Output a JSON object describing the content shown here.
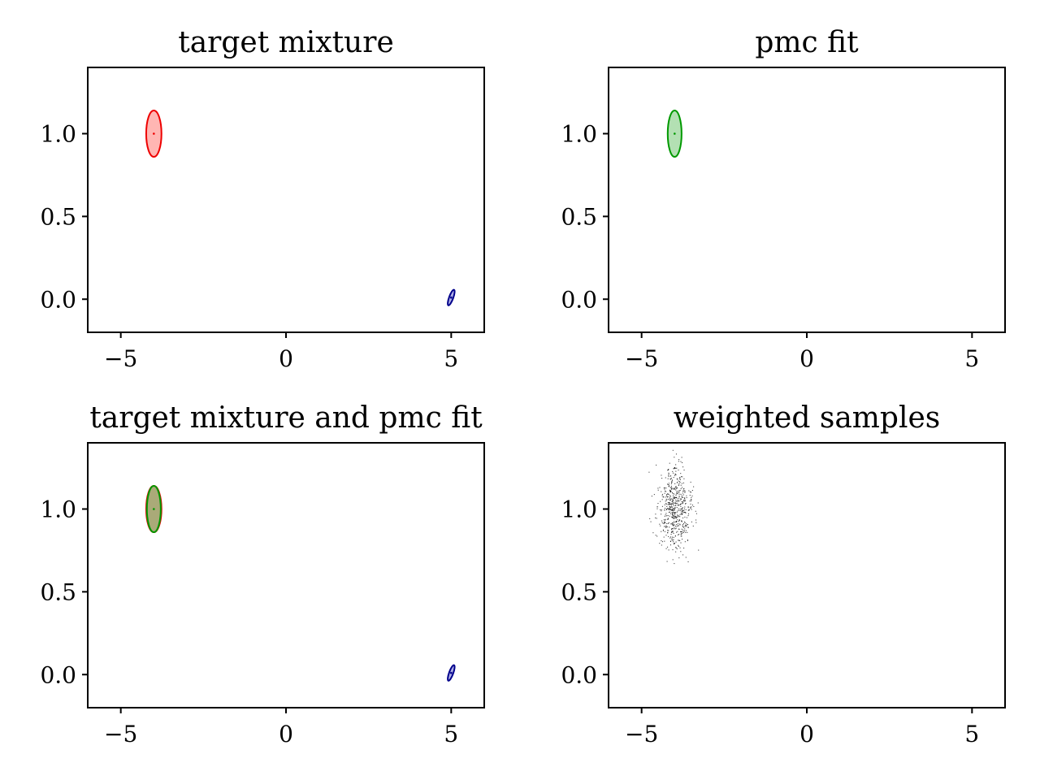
{
  "chart_data": [
    {
      "type": "scatter",
      "title": "target mixture",
      "xlim": [
        -6,
        6
      ],
      "ylim": [
        -0.2,
        1.4
      ],
      "xticks": [
        -5,
        0,
        5
      ],
      "xtick_labels": [
        "−5",
        "0",
        "5"
      ],
      "yticks": [
        0.0,
        0.5,
        1.0
      ],
      "ytick_labels": [
        "0.0",
        "0.5",
        "1.0"
      ],
      "ellipses": [
        {
          "cx": -4.0,
          "cy": 1.0,
          "rx": 0.33,
          "ry": 0.14,
          "angle": 0,
          "color": "#ee0000",
          "fill": "#ffb6b3",
          "center_dot": true
        },
        {
          "cx": 5.0,
          "cy": 0.01,
          "rx": 0.09,
          "ry": 0.05,
          "angle": 20,
          "color": "#00008b",
          "fill": "#b0b0e6",
          "center_dot": true
        }
      ]
    },
    {
      "type": "scatter",
      "title": "pmc fit",
      "xlim": [
        -6,
        6
      ],
      "ylim": [
        -0.2,
        1.4
      ],
      "xticks": [
        -5,
        0,
        5
      ],
      "xtick_labels": [
        "−5",
        "0",
        "5"
      ],
      "yticks": [
        0.0,
        0.5,
        1.0
      ],
      "ytick_labels": [
        "0.0",
        "0.5",
        "1.0"
      ],
      "ellipses": [
        {
          "cx": -4.0,
          "cy": 1.0,
          "rx": 0.3,
          "ry": 0.14,
          "angle": 0,
          "color": "#009900",
          "fill": "#b3e0b3",
          "center_dot": true
        }
      ]
    },
    {
      "type": "scatter",
      "title": "target mixture and pmc fit",
      "xlim": [
        -6,
        6
      ],
      "ylim": [
        -0.2,
        1.4
      ],
      "xticks": [
        -5,
        0,
        5
      ],
      "xtick_labels": [
        "−5",
        "0",
        "5"
      ],
      "yticks": [
        0.0,
        0.5,
        1.0
      ],
      "ytick_labels": [
        "0.0",
        "0.5",
        "1.0"
      ],
      "ellipses": [
        {
          "cx": -4.0,
          "cy": 1.0,
          "rx": 0.33,
          "ry": 0.14,
          "angle": 0,
          "color": "#ee0000",
          "fill": "#c9a090",
          "center_dot": true
        },
        {
          "cx": -4.0,
          "cy": 1.0,
          "rx": 0.3,
          "ry": 0.14,
          "angle": 0,
          "color": "#009900",
          "fill": "#aaaa78",
          "center_dot": true
        },
        {
          "cx": 5.0,
          "cy": 0.01,
          "rx": 0.09,
          "ry": 0.05,
          "angle": 20,
          "color": "#00008b",
          "fill": "#b0b0e6",
          "center_dot": true
        }
      ]
    },
    {
      "type": "scatter",
      "title": "weighted samples",
      "xlim": [
        -6,
        6
      ],
      "ylim": [
        -0.2,
        1.4
      ],
      "xticks": [
        -5,
        0,
        5
      ],
      "xtick_labels": [
        "−5",
        "0",
        "5"
      ],
      "yticks": [
        0.0,
        0.5,
        1.0
      ],
      "ytick_labels": [
        "0.0",
        "0.5",
        "1.0"
      ],
      "samples": {
        "count": 600,
        "center": [
          -4.0,
          1.0
        ],
        "std": [
          0.25,
          0.13
        ],
        "color": "#000000",
        "range_x": [
          -5.05,
          -3.2
        ],
        "range_y": [
          0.62,
          1.37
        ]
      }
    }
  ]
}
